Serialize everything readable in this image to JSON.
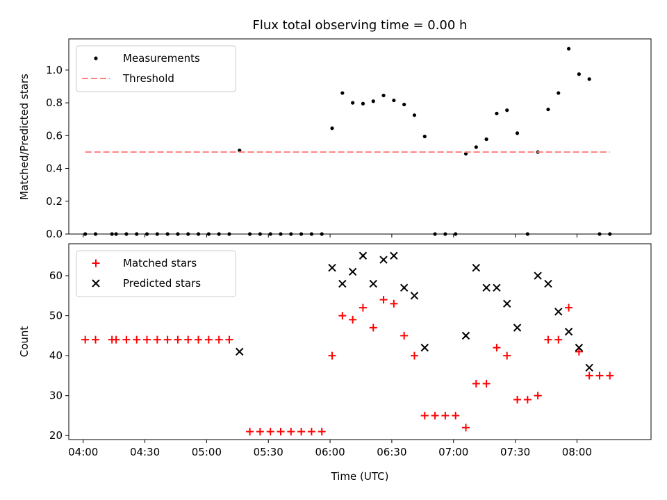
{
  "chart_data": [
    {
      "type": "scatter",
      "title": "Flux total observing time = 0.00 h",
      "xlabel": "",
      "ylabel": "Matched/Predicted stars",
      "xlim": [
        "03:53",
        "08:36"
      ],
      "ylim": [
        0,
        1.19
      ],
      "yticks": [
        "0.0",
        "0.2",
        "0.4",
        "0.6",
        "0.8",
        "1.0"
      ],
      "legend": "top-left",
      "series": [
        {
          "name": "Measurements",
          "color": "#000000",
          "marker": "dot",
          "points": [
            [
              "04:01",
              0.0
            ],
            [
              "04:06",
              0.0
            ],
            [
              "04:14",
              0.0
            ],
            [
              "04:16",
              0.0
            ],
            [
              "04:21",
              0.0
            ],
            [
              "04:26",
              0.0
            ],
            [
              "04:31",
              0.0
            ],
            [
              "04:36",
              0.0
            ],
            [
              "04:41",
              0.0
            ],
            [
              "04:46",
              0.0
            ],
            [
              "04:51",
              0.0
            ],
            [
              "04:56",
              0.0
            ],
            [
              "05:01",
              0.0
            ],
            [
              "05:06",
              0.0
            ],
            [
              "05:11",
              0.0
            ],
            [
              "05:16",
              0.51
            ],
            [
              "05:21",
              0.0
            ],
            [
              "05:26",
              0.0
            ],
            [
              "05:31",
              0.0
            ],
            [
              "05:36",
              0.0
            ],
            [
              "05:41",
              0.0
            ],
            [
              "05:46",
              0.0
            ],
            [
              "05:51",
              0.0
            ],
            [
              "05:56",
              0.0
            ],
            [
              "06:01",
              0.645
            ],
            [
              "06:06",
              0.86
            ],
            [
              "06:11",
              0.8
            ],
            [
              "06:16",
              0.795
            ],
            [
              "06:21",
              0.81
            ],
            [
              "06:26",
              0.845
            ],
            [
              "06:31",
              0.815
            ],
            [
              "06:36",
              0.79
            ],
            [
              "06:41",
              0.725
            ],
            [
              "06:46",
              0.595
            ],
            [
              "06:51",
              0.0
            ],
            [
              "06:56",
              0.0
            ],
            [
              "07:01",
              0.0
            ],
            [
              "07:06",
              0.49
            ],
            [
              "07:11",
              0.53
            ],
            [
              "07:16",
              0.578
            ],
            [
              "07:21",
              0.735
            ],
            [
              "07:26",
              0.755
            ],
            [
              "07:31",
              0.615
            ],
            [
              "07:36",
              0.0
            ],
            [
              "07:41",
              0.5
            ],
            [
              "07:46",
              0.76
            ],
            [
              "07:51",
              0.86
            ],
            [
              "07:56",
              1.13
            ],
            [
              "08:01",
              0.975
            ],
            [
              "08:06",
              0.945
            ],
            [
              "08:11",
              0.0
            ],
            [
              "08:16",
              0.0
            ]
          ]
        },
        {
          "name": "Threshold",
          "color": "#ff7f7f",
          "style": "dashed",
          "points": [
            [
              "04:01",
              0.5
            ],
            [
              "08:16",
              0.5
            ]
          ]
        }
      ]
    },
    {
      "type": "scatter",
      "title": "",
      "xlabel": "Time (UTC)",
      "ylabel": "Count",
      "xlim": [
        "03:53",
        "08:36"
      ],
      "ylim": [
        19,
        68
      ],
      "yticks": [
        "20",
        "30",
        "40",
        "50",
        "60"
      ],
      "xticks": [
        "04:00",
        "04:30",
        "05:00",
        "05:30",
        "06:00",
        "06:30",
        "07:00",
        "07:30",
        "08:00"
      ],
      "legend": "top-left",
      "series": [
        {
          "name": "Matched stars",
          "color": "#ff0000",
          "marker": "plus",
          "points": [
            [
              "04:01",
              44
            ],
            [
              "04:06",
              44
            ],
            [
              "04:14",
              44
            ],
            [
              "04:16",
              44
            ],
            [
              "04:21",
              44
            ],
            [
              "04:26",
              44
            ],
            [
              "04:31",
              44
            ],
            [
              "04:36",
              44
            ],
            [
              "04:41",
              44
            ],
            [
              "04:46",
              44
            ],
            [
              "04:51",
              44
            ],
            [
              "04:56",
              44
            ],
            [
              "05:01",
              44
            ],
            [
              "05:06",
              44
            ],
            [
              "05:11",
              44
            ],
            [
              "05:21",
              21
            ],
            [
              "05:26",
              21
            ],
            [
              "05:31",
              21
            ],
            [
              "05:36",
              21
            ],
            [
              "05:41",
              21
            ],
            [
              "05:46",
              21
            ],
            [
              "05:51",
              21
            ],
            [
              "05:56",
              21
            ],
            [
              "06:01",
              40
            ],
            [
              "06:06",
              50
            ],
            [
              "06:11",
              49
            ],
            [
              "06:16",
              52
            ],
            [
              "06:21",
              47
            ],
            [
              "06:26",
              54
            ],
            [
              "06:31",
              53
            ],
            [
              "06:36",
              45
            ],
            [
              "06:41",
              40
            ],
            [
              "06:46",
              25
            ],
            [
              "06:51",
              25
            ],
            [
              "06:56",
              25
            ],
            [
              "07:01",
              25
            ],
            [
              "07:06",
              22
            ],
            [
              "07:11",
              33
            ],
            [
              "07:16",
              33
            ],
            [
              "07:21",
              42
            ],
            [
              "07:26",
              40
            ],
            [
              "07:31",
              29
            ],
            [
              "07:36",
              29
            ],
            [
              "07:41",
              30
            ],
            [
              "07:46",
              44
            ],
            [
              "07:51",
              44
            ],
            [
              "07:56",
              52
            ],
            [
              "08:01",
              41
            ],
            [
              "08:06",
              35
            ],
            [
              "08:11",
              35
            ],
            [
              "08:16",
              35
            ]
          ]
        },
        {
          "name": "Predicted stars",
          "color": "#000000",
          "marker": "x",
          "points": [
            [
              "05:16",
              41
            ],
            [
              "06:01",
              62
            ],
            [
              "06:06",
              58
            ],
            [
              "06:11",
              61
            ],
            [
              "06:16",
              65
            ],
            [
              "06:21",
              58
            ],
            [
              "06:26",
              64
            ],
            [
              "06:31",
              65
            ],
            [
              "06:36",
              57
            ],
            [
              "06:41",
              55
            ],
            [
              "06:46",
              42
            ],
            [
              "07:06",
              45
            ],
            [
              "07:11",
              62
            ],
            [
              "07:16",
              57
            ],
            [
              "07:21",
              57
            ],
            [
              "07:26",
              53
            ],
            [
              "07:31",
              47
            ],
            [
              "07:41",
              60
            ],
            [
              "07:46",
              58
            ],
            [
              "07:51",
              51
            ],
            [
              "07:56",
              46
            ],
            [
              "08:01",
              42
            ],
            [
              "08:06",
              37
            ]
          ]
        }
      ]
    }
  ]
}
